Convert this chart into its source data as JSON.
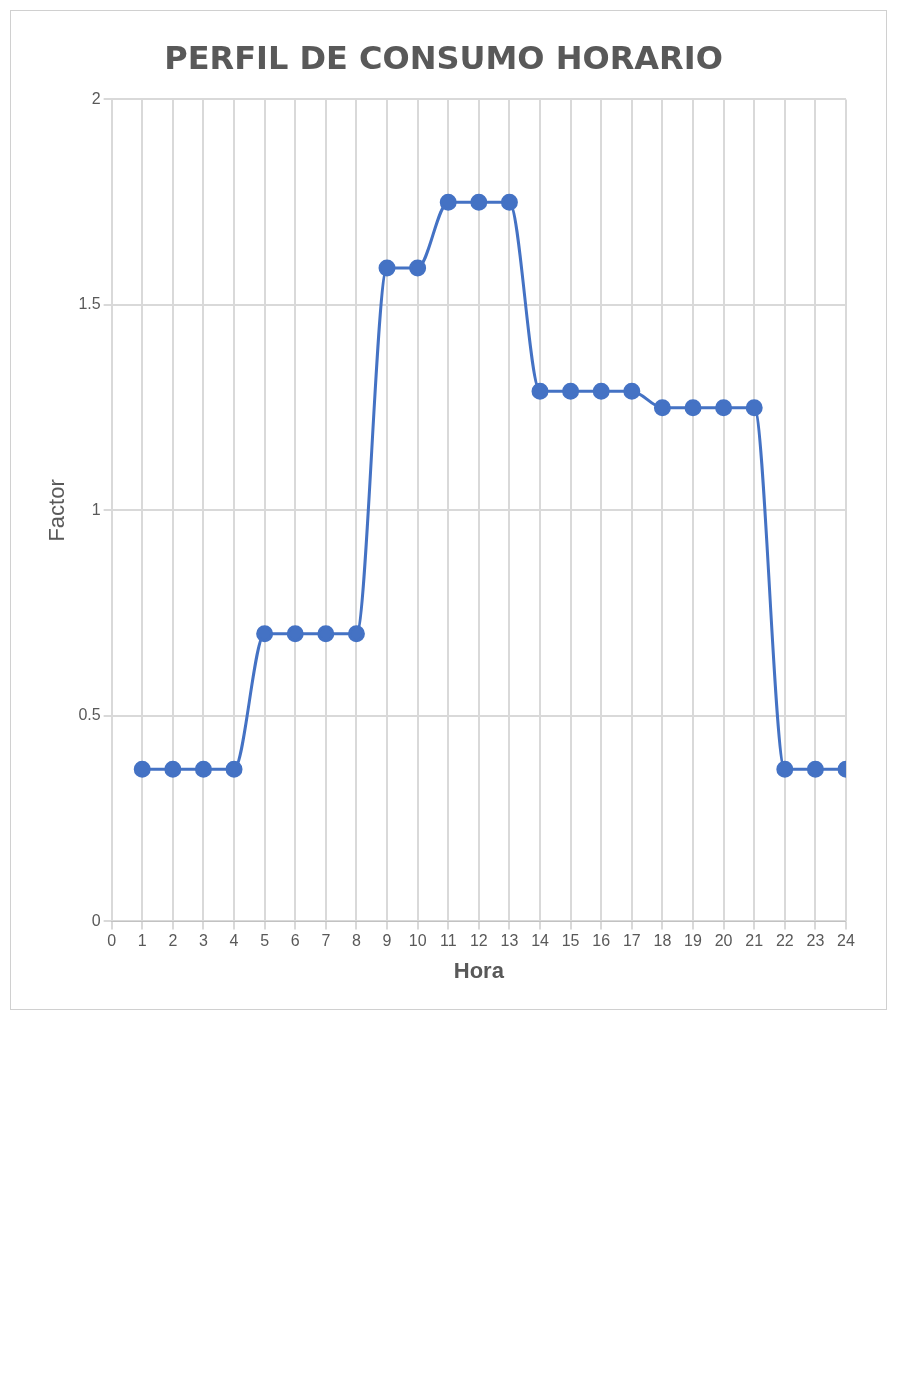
{
  "chart_data": {
    "type": "line",
    "title": "PERFIL DE CONSUMO HORARIO",
    "xlabel": "Hora",
    "ylabel": "Factor",
    "x": [
      1,
      2,
      3,
      4,
      5,
      6,
      7,
      8,
      9,
      10,
      11,
      12,
      13,
      14,
      15,
      16,
      17,
      18,
      19,
      20,
      21,
      22,
      23,
      24
    ],
    "series": [
      {
        "color": "#4472c4",
        "values": [
          0.37,
          0.37,
          0.37,
          0.37,
          0.7,
          0.7,
          0.7,
          0.7,
          1.59,
          1.59,
          1.75,
          1.75,
          1.75,
          1.29,
          1.29,
          1.29,
          1.29,
          1.25,
          1.25,
          1.25,
          1.25,
          0.37,
          0.37,
          0.37
        ]
      }
    ],
    "xlim": [
      0,
      24
    ],
    "xticks": [
      0,
      1,
      2,
      3,
      4,
      5,
      6,
      7,
      8,
      9,
      10,
      11,
      12,
      13,
      14,
      15,
      16,
      17,
      18,
      19,
      20,
      21,
      22,
      23,
      24
    ],
    "ylim": [
      0,
      2
    ],
    "yticks": [
      0,
      0.5,
      1,
      1.5,
      2
    ],
    "grid": true,
    "legend": false,
    "marker": "circle",
    "line_style": "solid"
  }
}
